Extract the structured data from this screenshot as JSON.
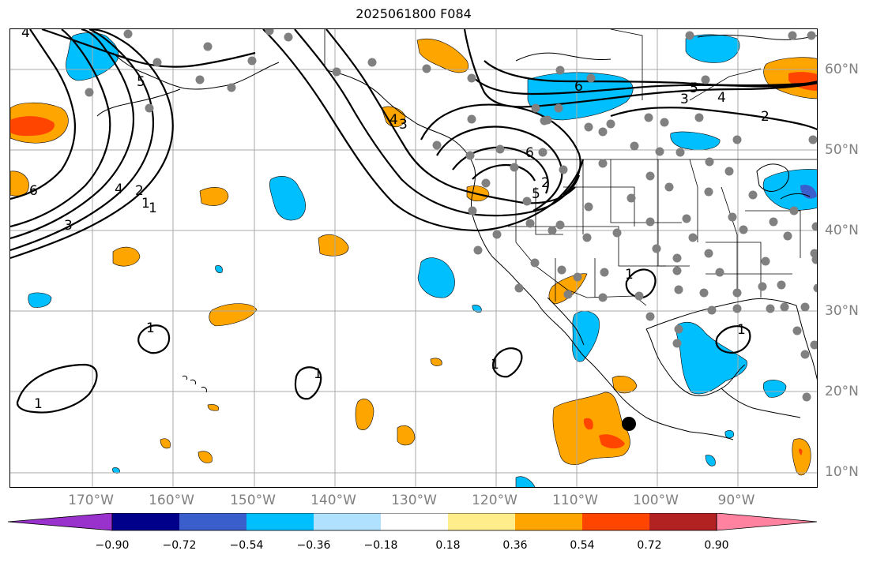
{
  "title": "2025061800 F084",
  "map": {
    "longitude_labels": [
      "170°W",
      "160°W",
      "150°W",
      "140°W",
      "130°W",
      "120°W",
      "110°W",
      "100°W",
      "90°W"
    ],
    "latitude_labels": [
      "60°N",
      "50°N",
      "40°N",
      "30°N",
      "20°N",
      "10°N"
    ],
    "contour_labels": [
      "4",
      "5",
      "6",
      "4",
      "3",
      "2",
      "1",
      "6",
      "5",
      "4",
      "3",
      "2",
      "6",
      "5",
      "4",
      "3",
      "2",
      "1",
      "1",
      "1",
      "1",
      "1",
      "1",
      "1"
    ],
    "marker": "black dot (storm center)"
  },
  "colorbar": {
    "ticks": [
      "−0.90",
      "−0.72",
      "−0.54",
      "−0.36",
      "−0.18",
      "0.18",
      "0.36",
      "0.54",
      "0.72",
      "0.90"
    ],
    "colors": [
      "#9932cc",
      "#00008b",
      "#3a5fcd",
      "#00bfff",
      "#b0e2ff",
      "#ffffff",
      "#ffec8b",
      "#ffa500",
      "#ff4500",
      "#b22222",
      "#ff83a0"
    ]
  }
}
